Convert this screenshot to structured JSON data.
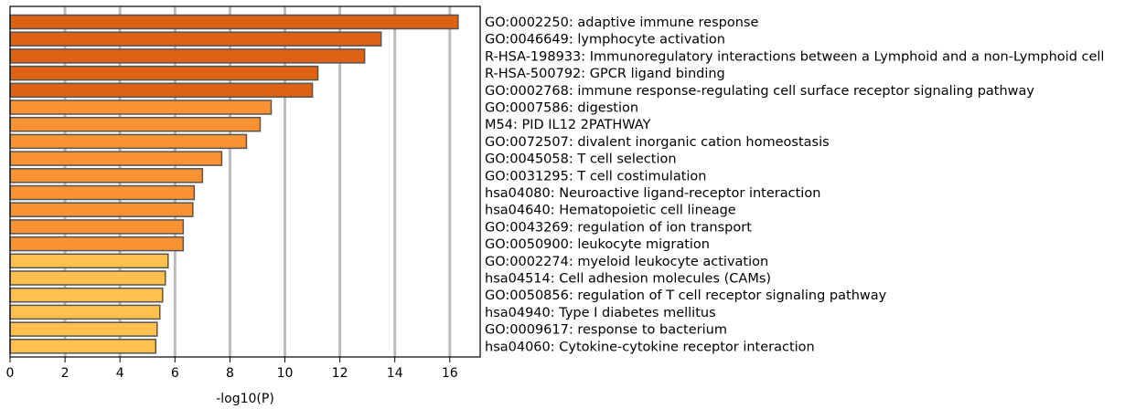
{
  "chart_data": {
    "type": "bar",
    "orientation": "horizontal",
    "xlabel": "-log10(P)",
    "xlim": [
      0,
      17
    ],
    "xticks": [
      0,
      2,
      4,
      6,
      8,
      10,
      12,
      14,
      16
    ],
    "grid": true,
    "categories": [
      "GO:0002250: adaptive immune response",
      "GO:0046649: lymphocyte activation",
      "R-HSA-198933: Immunoregulatory interactions between a Lymphoid and a non-Lymphoid cell",
      "R-HSA-500792: GPCR ligand binding",
      "GO:0002768: immune response-regulating cell surface receptor signaling pathway",
      "GO:0007586: digestion",
      "M54: PID IL12 2PATHWAY",
      "GO:0072507: divalent inorganic cation homeostasis",
      "GO:0045058: T cell selection",
      "GO:0031295: T cell costimulation",
      "hsa04080: Neuroactive ligand-receptor interaction",
      "hsa04640: Hematopoietic cell lineage",
      "GO:0043269: regulation of ion transport",
      "GO:0050900: leukocyte migration",
      "GO:0002274: myeloid leukocyte activation",
      "hsa04514: Cell adhesion molecules (CAMs)",
      "GO:0050856: regulation of T cell receptor signaling pathway",
      "hsa04940: Type I diabetes mellitus",
      "GO:0009617: response to bacterium",
      "hsa04060: Cytokine-cytokine receptor interaction"
    ],
    "values": [
      16.3,
      13.5,
      12.9,
      11.2,
      11.0,
      9.5,
      9.1,
      8.6,
      7.7,
      7.0,
      6.7,
      6.65,
      6.3,
      6.3,
      5.75,
      5.65,
      5.55,
      5.45,
      5.35,
      5.3
    ],
    "colors": {
      "dark": "#DD6214",
      "medium": "#F99233",
      "light": "#FFC04E",
      "bar_border": "#555555",
      "grid": "#BBBBBB",
      "axis": "#000000"
    },
    "color_levels": [
      "dark",
      "dark",
      "dark",
      "dark",
      "dark",
      "medium",
      "medium",
      "medium",
      "medium",
      "medium",
      "medium",
      "medium",
      "medium",
      "medium",
      "light",
      "light",
      "light",
      "light",
      "light",
      "light"
    ]
  }
}
